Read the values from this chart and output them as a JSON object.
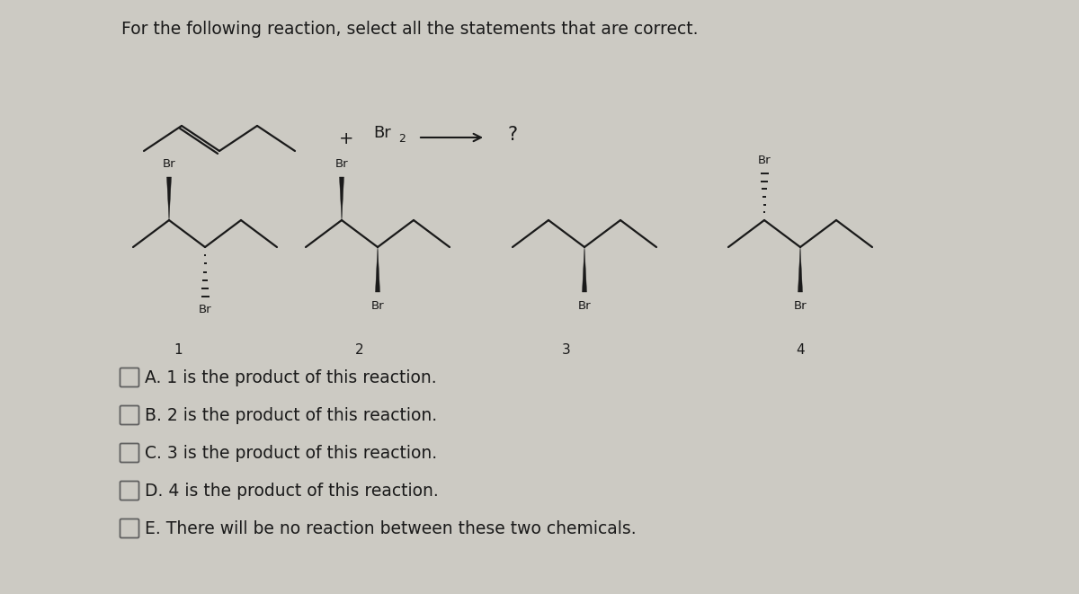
{
  "title": "For the following reaction, select all the statements that are correct.",
  "background_color": "#cccac3",
  "text_color": "#1a1a1a",
  "title_fontsize": 13.5,
  "choices": [
    "A. 1 is the product of this reaction.",
    "B. 2 is the product of this reaction.",
    "C. 3 is the product of this reaction.",
    "D. 4 is the product of this reaction.",
    "E. There will be no reaction between these two chemicals."
  ],
  "choices_fontsize": 13.5
}
